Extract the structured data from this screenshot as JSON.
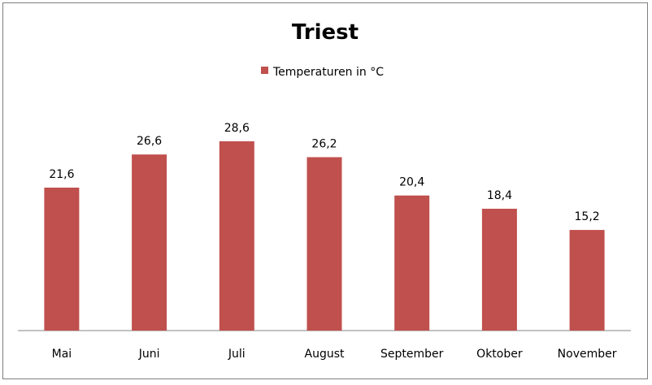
{
  "chart_data": {
    "type": "bar",
    "title": "Triest",
    "categories": [
      "Mai",
      "Juni",
      "Juli",
      "August",
      "September",
      "Oktober",
      "November"
    ],
    "series": [
      {
        "name": "Temperaturen  in  °C",
        "values": [
          21.6,
          26.6,
          28.6,
          26.2,
          20.4,
          18.4,
          15.2
        ],
        "color": "#c0504d"
      }
    ],
    "data_labels": [
      "21,6",
      "26,6",
      "28,6",
      "26,2",
      "20,4",
      "18,4",
      "15,2"
    ],
    "ylim": [
      0,
      30
    ],
    "grid": false,
    "legend_position": "top",
    "axis_color": "#868686"
  }
}
